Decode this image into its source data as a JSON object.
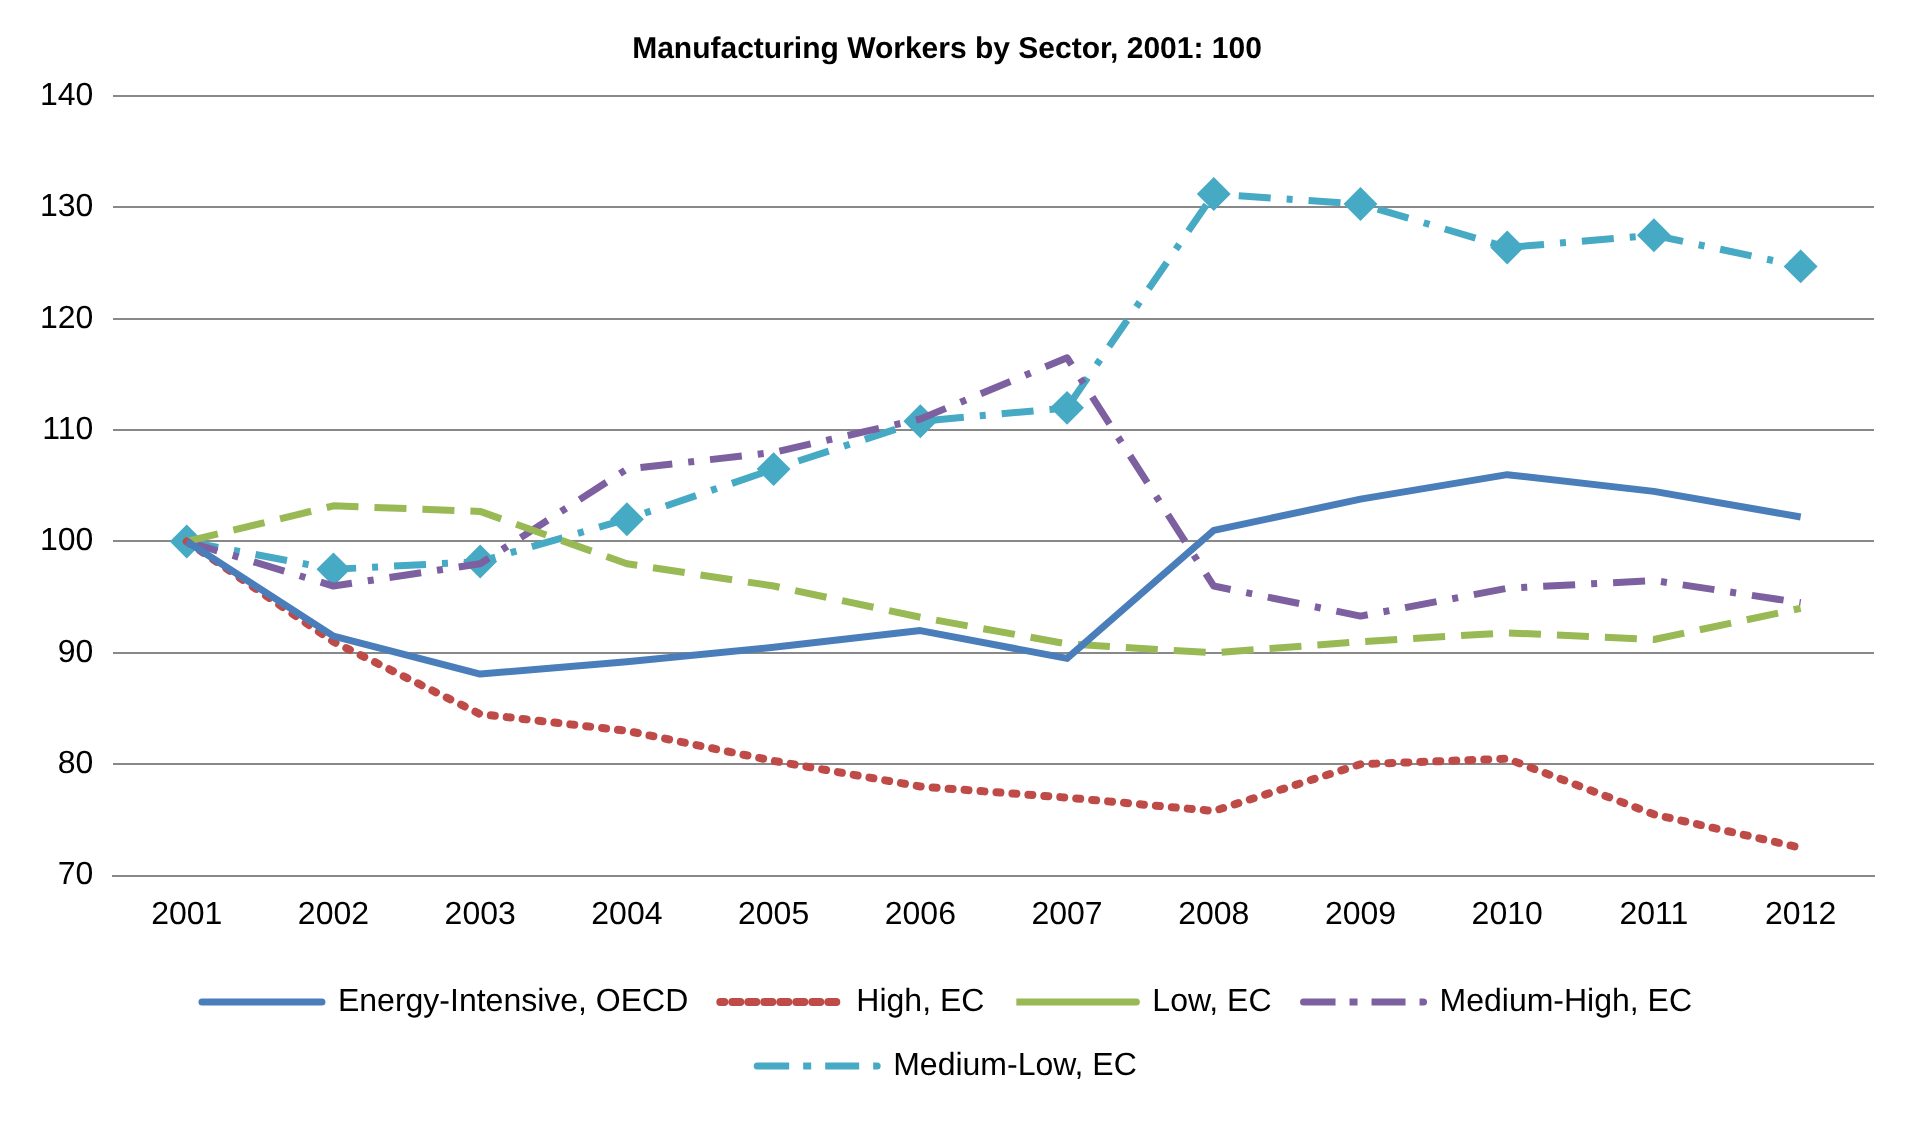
{
  "chart_data": {
    "type": "line",
    "title": "Manufacturing Workers by Sector, 2001: 100",
    "categories": [
      "2001",
      "2002",
      "2003",
      "2004",
      "2005",
      "2006",
      "2007",
      "2008",
      "2009",
      "2010",
      "2011",
      "2012"
    ],
    "ylim": [
      70,
      140
    ],
    "yticks": [
      70,
      80,
      90,
      100,
      110,
      120,
      130,
      140
    ],
    "grid": "y",
    "legend": "bottom",
    "series": [
      {
        "name": "Energy-Intensive, OECD",
        "color": "#4a7ebb",
        "line_style": "solid",
        "marker": "none",
        "values": [
          100,
          91.5,
          88.1,
          89.2,
          90.5,
          92,
          89.5,
          101,
          103.8,
          106,
          104.5,
          102.2
        ]
      },
      {
        "name": "High, EC",
        "color": "#be4b48",
        "line_style": "dotted",
        "marker": "none",
        "values": [
          100,
          91,
          84.5,
          83,
          80.3,
          78,
          77,
          75.8,
          80,
          80.5,
          75.5,
          72.5
        ]
      },
      {
        "name": "Low, EC",
        "color": "#98b954",
        "line_style": "dashed",
        "marker": "none",
        "values": [
          100,
          103.2,
          102.7,
          98,
          96,
          93.2,
          90.8,
          90,
          91,
          91.8,
          91.2,
          94
        ]
      },
      {
        "name": "Medium-High, EC",
        "color": "#7d60a0",
        "line_style": "dashdot",
        "marker": "none",
        "values": [
          100,
          96,
          98,
          106.5,
          108,
          111,
          116.5,
          96,
          93.3,
          95.8,
          96.5,
          94.5
        ]
      },
      {
        "name": "Medium-Low, EC",
        "color": "#46aac5",
        "line_style": "dashdot",
        "marker": "diamond",
        "values": [
          100,
          97.5,
          98.2,
          102,
          106.5,
          110.8,
          112,
          131.2,
          130.3,
          126.4,
          127.5,
          124.7
        ]
      }
    ]
  }
}
